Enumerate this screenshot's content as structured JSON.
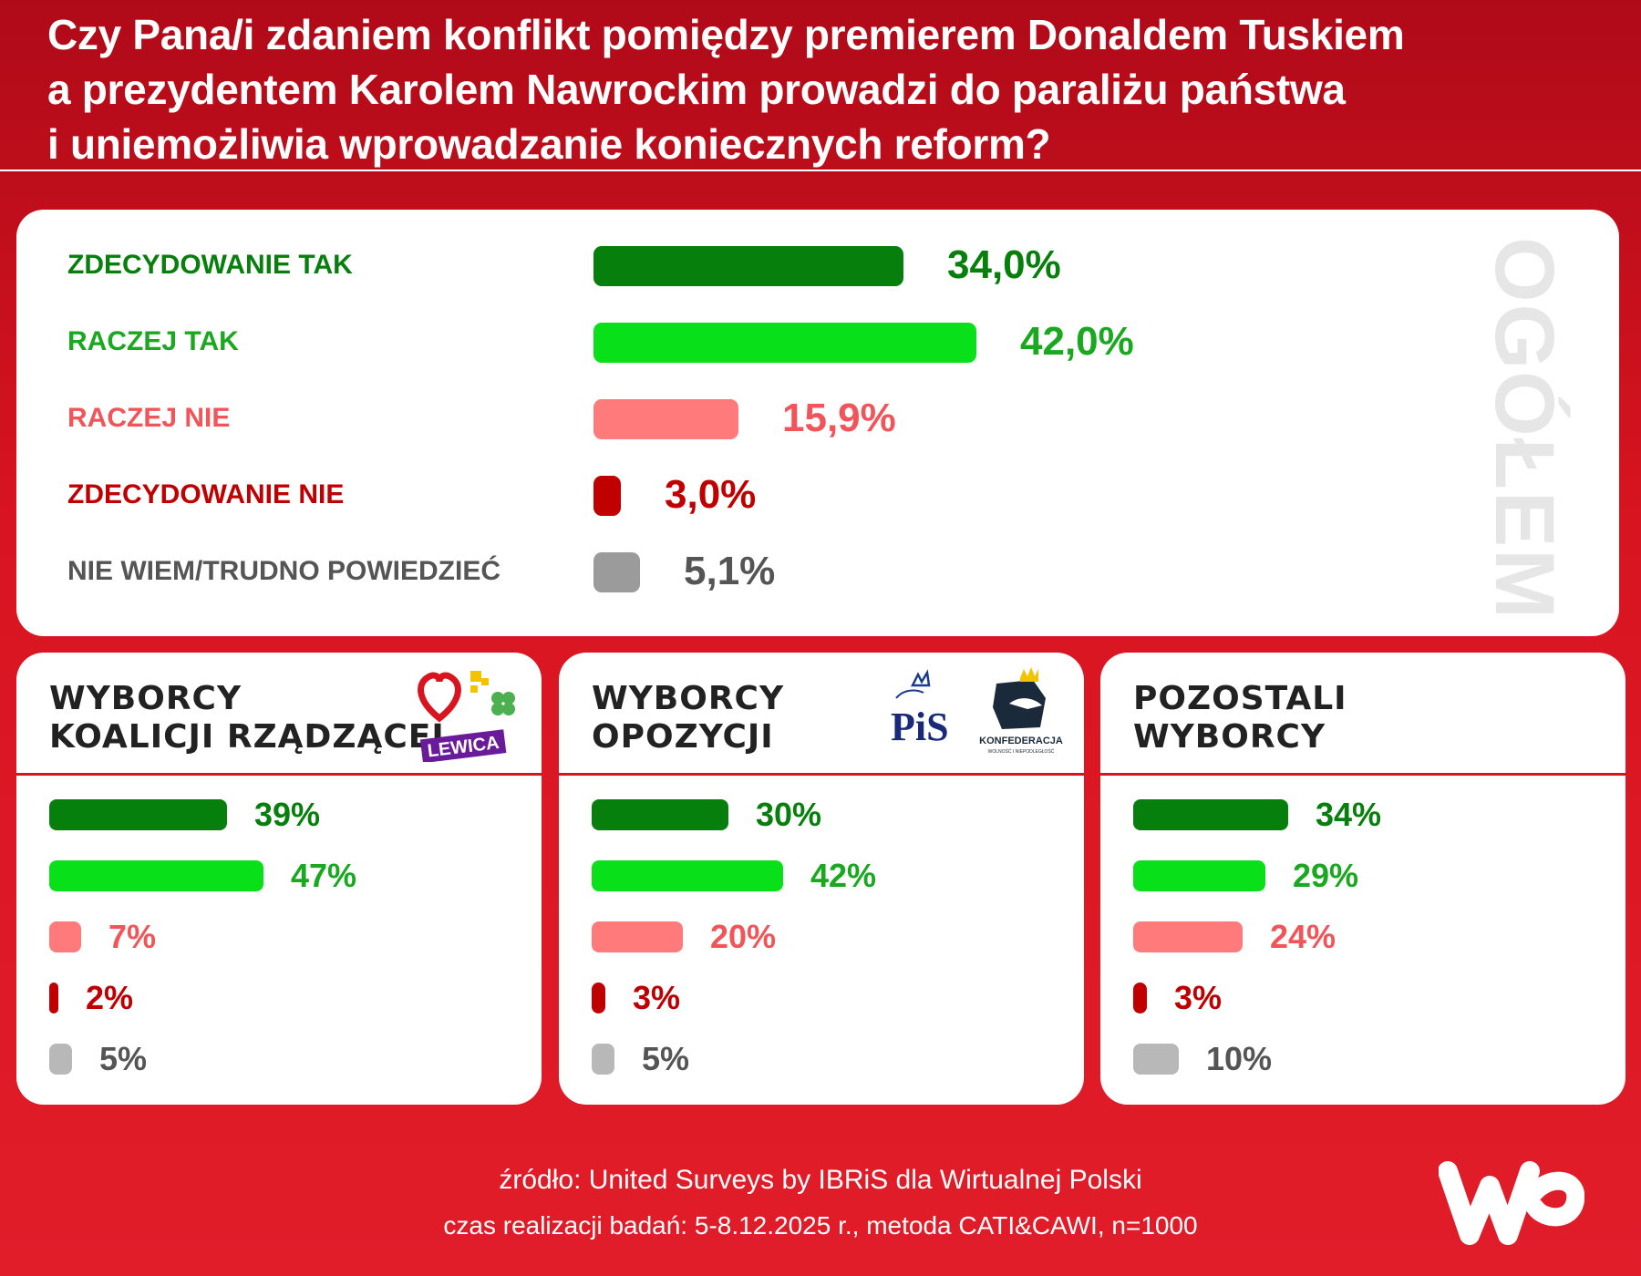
{
  "header": {
    "title_lines": [
      "Czy Pana/i zdaniem konflikt pomiędzy premierem Donaldem Tuskiem",
      "a prezydentem Karolem Nawrockim prowadzi do paraliżu państwa",
      "i uniemożliwia wprowadzanie koniecznych reform?"
    ]
  },
  "colors": {
    "strong_yes": "#077f0c",
    "yes": "#08e11a",
    "yes_text": "#19a81f",
    "no": "#ff7b7b",
    "no_text": "#f0555a",
    "strong_no": "#c00000",
    "dont_know": "#9b9b9b",
    "dont_know_light": "#b8b8b8",
    "dont_know_text": "#555555"
  },
  "chart_data": [
    {
      "type": "bar",
      "orientation": "horizontal",
      "title": "OGÓŁEM",
      "categories": [
        "ZDECYDOWANIE TAK",
        "RACZEJ TAK",
        "RACZEJ NIE",
        "ZDECYDOWANIE NIE",
        "NIE WIEM/TRUDNO POWIEDZIEĆ"
      ],
      "values": [
        34.0,
        42.0,
        15.9,
        3.0,
        5.1
      ],
      "labels": [
        "34,0%",
        "42,0%",
        "15,9%",
        "3,0%",
        "5,1%"
      ]
    },
    {
      "type": "bar",
      "orientation": "horizontal",
      "title_lines": [
        "WYBORCY",
        "KOALICJI RZĄDZĄCEJ"
      ],
      "values": [
        39,
        47,
        7,
        2,
        5
      ],
      "labels": [
        "39%",
        "47%",
        "7%",
        "2%",
        "5%"
      ]
    },
    {
      "type": "bar",
      "orientation": "horizontal",
      "title_lines": [
        "WYBORCY",
        "OPOZYCJI"
      ],
      "values": [
        30,
        42,
        20,
        3,
        5
      ],
      "labels": [
        "30%",
        "42%",
        "20%",
        "3%",
        "5%"
      ]
    },
    {
      "type": "bar",
      "orientation": "horizontal",
      "title_lines": [
        "POZOSTALI",
        "WYBORCY"
      ],
      "values": [
        34,
        29,
        24,
        3,
        10
      ],
      "labels": [
        "34%",
        "29%",
        "24%",
        "3%",
        "10%"
      ]
    }
  ],
  "logos": {
    "coalition": {
      "icons": [
        "heart-icon",
        "clover-icon"
      ],
      "text": "LEWICA"
    },
    "opposition": {
      "pis": "PiS",
      "konfederacja": "KONFEDERACJA",
      "konfederacja_sub": "WOLNOŚĆ I NIEPODLEGŁOŚĆ"
    },
    "wp": "wp-logo"
  },
  "footer": {
    "source": "źródło: United Surveys by IBRiS dla Wirtualnej Polski",
    "method": "czas realizacji badań: 5-8.12.2025 r., metoda CATI&CAWI, n=1000"
  }
}
